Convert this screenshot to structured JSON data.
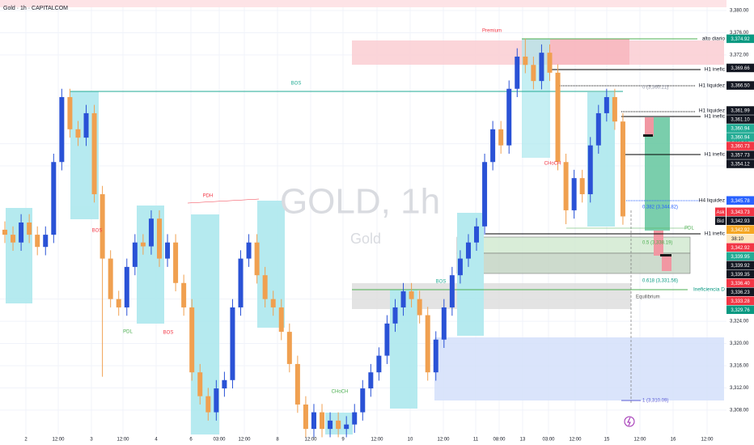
{
  "chart_data": {
    "type": "candlestick",
    "title": "Gold · 1h · CAPITALCOM",
    "watermark": "GOLD, 1h",
    "watermark_subtitle": "Gold",
    "up_color": "#2a52d6",
    "down_color": "#f0a050",
    "grid": true,
    "ylim": [
      3303.6,
      3381.9
    ],
    "yticks": [
      {
        "value": 3380,
        "label": "3,380.00"
      },
      {
        "value": 3376,
        "label": "3,376.00"
      },
      {
        "value": 3372,
        "label": "3,372.00"
      },
      {
        "value": 3356,
        "label": "3,356.00"
      },
      {
        "value": 3352,
        "label": "3,352.00"
      },
      {
        "value": 3328,
        "label": "3,328.00"
      },
      {
        "value": 3324,
        "label": "3,324.00"
      },
      {
        "value": 3320,
        "label": "3,320.00"
      },
      {
        "value": 3316,
        "label": "3,316.00"
      },
      {
        "value": 3312,
        "label": "3,312.00"
      },
      {
        "value": 3308,
        "label": "3,308.00"
      }
    ],
    "x_labels": [
      "2",
      "12:00",
      "3",
      "12:00",
      "4",
      "6",
      "03:00",
      "12:00",
      "8",
      "12:00",
      "9",
      "12:00",
      "10",
      "12:00",
      "11",
      "08:00",
      "13",
      "03:00",
      "12:00",
      "15",
      "12:00",
      "16",
      "12:00"
    ],
    "ohlc": [
      [
        3340.5,
        3342.0,
        3338.1,
        3339.6
      ],
      [
        3339.6,
        3341.1,
        3336.7,
        3338.2
      ],
      [
        3338.2,
        3343.3,
        3336.7,
        3341.8
      ],
      [
        3341.8,
        3343.3,
        3338.1,
        3339.6
      ],
      [
        3339.6,
        3341.1,
        3335.9,
        3337.4
      ],
      [
        3337.4,
        3341.1,
        3335.9,
        3339.6
      ],
      [
        3339.6,
        3354.2,
        3338.1,
        3352.7
      ],
      [
        3352.7,
        3365.9,
        3351.2,
        3364.4
      ],
      [
        3364.4,
        3365.9,
        3357.1,
        3358.6
      ],
      [
        3358.6,
        3360.1,
        3355.6,
        3357.1
      ],
      [
        3357.1,
        3363.0,
        3355.6,
        3361.5
      ],
      [
        3361.5,
        3363.0,
        3345.4,
        3346.9
      ],
      [
        3346.9,
        3348.4,
        3314.0,
        3335.3
      ],
      [
        3335.3,
        3336.8,
        3326.5,
        3328.0
      ],
      [
        3328.0,
        3329.5,
        3325.0,
        3326.5
      ],
      [
        3326.5,
        3335.3,
        3325.0,
        3333.8
      ],
      [
        3333.8,
        3339.7,
        3332.3,
        3338.2
      ],
      [
        3338.2,
        3339.7,
        3336.0,
        3337.5
      ],
      [
        3337.5,
        3344.0,
        3336.0,
        3342.5
      ],
      [
        3342.5,
        3344.0,
        3333.8,
        3335.3
      ],
      [
        3335.3,
        3339.7,
        3333.8,
        3338.2
      ],
      [
        3338.2,
        3339.7,
        3329.4,
        3330.9
      ],
      [
        3330.9,
        3332.4,
        3325.0,
        3326.5
      ],
      [
        3326.5,
        3328.0,
        3313.3,
        3314.8
      ],
      [
        3314.8,
        3316.3,
        3309.0,
        3310.5
      ],
      [
        3310.5,
        3312.0,
        3306.1,
        3307.6
      ],
      [
        3307.6,
        3313.4,
        3306.1,
        3311.9
      ],
      [
        3311.9,
        3314.9,
        3310.4,
        3313.4
      ],
      [
        3313.4,
        3328.0,
        3311.9,
        3326.5
      ],
      [
        3326.5,
        3336.8,
        3325.0,
        3335.3
      ],
      [
        3335.3,
        3339.7,
        3333.8,
        3338.2
      ],
      [
        3338.2,
        3339.7,
        3330.8,
        3332.3
      ],
      [
        3332.3,
        3333.8,
        3326.5,
        3328.0
      ],
      [
        3328.0,
        3329.5,
        3325.0,
        3326.5
      ],
      [
        3326.5,
        3328.0,
        3320.6,
        3322.1
      ],
      [
        3322.1,
        3323.6,
        3314.8,
        3316.3
      ],
      [
        3316.3,
        3317.8,
        3307.5,
        3309.0
      ],
      [
        3309.0,
        3310.5,
        3303.1,
        3304.6
      ],
      [
        3304.6,
        3309.1,
        3303.1,
        3307.6
      ],
      [
        3307.6,
        3309.1,
        3303.1,
        3304.6
      ],
      [
        3304.6,
        3307.6,
        3303.1,
        3306.1
      ],
      [
        3306.1,
        3307.6,
        3303.1,
        3304.6
      ],
      [
        3304.6,
        3306.9,
        3303.1,
        3305.4
      ],
      [
        3305.4,
        3309.1,
        3303.9,
        3307.6
      ],
      [
        3307.6,
        3313.4,
        3306.1,
        3311.9
      ],
      [
        3311.9,
        3316.3,
        3310.4,
        3314.8
      ],
      [
        3314.8,
        3319.3,
        3313.3,
        3317.8
      ],
      [
        3317.8,
        3325.1,
        3316.3,
        3323.6
      ],
      [
        3323.6,
        3328.0,
        3322.1,
        3326.5
      ],
      [
        3326.5,
        3330.9,
        3325.0,
        3329.4
      ],
      [
        3329.4,
        3330.9,
        3326.5,
        3328.0
      ],
      [
        3328.0,
        3329.5,
        3323.6,
        3325.1
      ],
      [
        3325.1,
        3326.6,
        3313.3,
        3314.8
      ],
      [
        3314.8,
        3322.2,
        3313.3,
        3320.7
      ],
      [
        3320.7,
        3328.0,
        3319.2,
        3326.5
      ],
      [
        3326.5,
        3333.8,
        3325.0,
        3332.3
      ],
      [
        3332.3,
        3336.8,
        3330.8,
        3335.3
      ],
      [
        3335.3,
        3339.7,
        3333.8,
        3338.2
      ],
      [
        3338.2,
        3342.6,
        3336.7,
        3341.1
      ],
      [
        3341.1,
        3354.2,
        3339.6,
        3352.7
      ],
      [
        3352.7,
        3360.1,
        3351.2,
        3358.6
      ],
      [
        3358.6,
        3360.1,
        3354.2,
        3355.7
      ],
      [
        3355.7,
        3367.4,
        3354.2,
        3365.9
      ],
      [
        3365.9,
        3373.2,
        3364.4,
        3371.7
      ],
      [
        3371.7,
        3374.9,
        3368.7,
        3370.2
      ],
      [
        3370.2,
        3371.7,
        3365.8,
        3367.3
      ],
      [
        3367.3,
        3373.9,
        3365.8,
        3372.4
      ],
      [
        3372.4,
        3373.9,
        3367.3,
        3368.8
      ],
      [
        3368.8,
        3370.3,
        3351.2,
        3352.7
      ],
      [
        3352.7,
        3354.2,
        3341.5,
        3344.0
      ],
      [
        3344.0,
        3351.3,
        3342.5,
        3349.8
      ],
      [
        3349.8,
        3351.3,
        3345.4,
        3346.9
      ],
      [
        3346.9,
        3357.2,
        3345.4,
        3355.7
      ],
      [
        3355.7,
        3363.0,
        3354.2,
        3361.5
      ],
      [
        3361.5,
        3365.9,
        3360.0,
        3364.4
      ],
      [
        3364.4,
        3365.9,
        3358.5,
        3360.0
      ],
      [
        3360.0,
        3361.5,
        3341.4,
        3342.9
      ]
    ],
    "price_tags": [
      {
        "value": 3374.92,
        "label": "3,374.92",
        "color": "#089981"
      },
      {
        "value": 3369.66,
        "label": "3,369.66",
        "color": "#131722"
      },
      {
        "value": 3366.5,
        "label": "3,366.50",
        "color": "#131722"
      },
      {
        "value": 3361.99,
        "label": "3,361.99",
        "color": "#131722"
      },
      {
        "value": 3361.1,
        "label": "3,361.10",
        "color": "#131722"
      },
      {
        "value": 3360.94,
        "label": "3,360.94",
        "color": "#22ab94"
      },
      {
        "value": 3360.94,
        "label": "3,360.94",
        "color": "#22ab94"
      },
      {
        "value": 3360.73,
        "label": "3,360.73",
        "color": "#f23645"
      },
      {
        "value": 3357.73,
        "label": "3,357.73",
        "color": "#131722"
      },
      {
        "value": 3354.12,
        "label": "3,354.12",
        "color": "#131722"
      },
      {
        "value": 3345.78,
        "label": "3,345.78",
        "color": "#2962ff"
      },
      {
        "value": 3343.73,
        "label": "3,343.73",
        "color": "#f23645",
        "name": "Ask"
      },
      {
        "value": 3342.93,
        "label": "3,342.93",
        "color": "#131722",
        "name": "Bid"
      },
      {
        "value": 3342.92,
        "label": "3,342.92",
        "color": "#f5a623"
      },
      {
        "value": 3342.92,
        "label": "3,342.92",
        "color": "#f23645"
      },
      {
        "value": 3339.95,
        "label": "3,339.95",
        "color": "#22ab94"
      },
      {
        "value": 3339.92,
        "label": "3,339.92",
        "color": "#131722"
      },
      {
        "value": 3339.35,
        "label": "3,339.35",
        "color": "#131722"
      },
      {
        "value": 3336.4,
        "label": "3,336.40",
        "color": "#f23645"
      },
      {
        "value": 3336.23,
        "label": "3,336.23",
        "color": "#131722"
      },
      {
        "value": 3333.28,
        "label": "3,333.28",
        "color": "#f23645"
      },
      {
        "value": 3329.76,
        "label": "3,329.76",
        "color": "#089981"
      }
    ],
    "countdown": "38:10",
    "annotations": {
      "premium": "Premium",
      "bos": "BOS",
      "pdh": "PDH",
      "pdl": "PDL",
      "choch": "CHoCH",
      "alto_diario": "alto diario",
      "h1_inefic": "H1 inefic",
      "h1_liquidez": "H1 liquidez",
      "h4_liquidez": "H4 liquidez",
      "ineficiencia_d": "Ineficiencia D",
      "equilibrium": "Equilibrium",
      "fib_0": "0 (3,360.21)",
      "fib_382": "0.382 (3,344.82)",
      "fib_5": "0.5 (3,338.19)",
      "fib_618": "0.618 (3,331.56)",
      "fib_1": "1 (3,310.09)"
    }
  }
}
